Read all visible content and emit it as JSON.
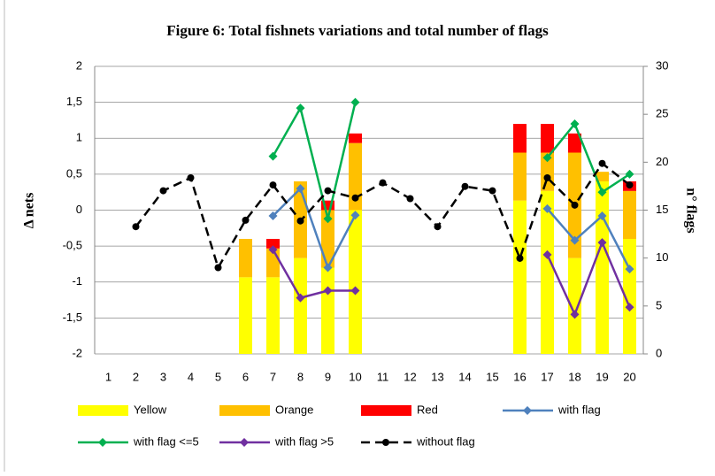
{
  "chart_data": {
    "type": "combo",
    "title": "Figure 6: Total fishnets variations and total number of flags",
    "y_label": "Δ nets",
    "y2_label": "n° flags",
    "categories": [
      "1",
      "2",
      "3",
      "4",
      "5",
      "6",
      "7",
      "8",
      "9",
      "10",
      "11",
      "12",
      "13",
      "14",
      "15",
      "16",
      "17",
      "18",
      "19",
      "20"
    ],
    "ylim": [
      -2,
      2
    ],
    "yticks": [
      -2,
      {
        "value": -1.5,
        "label": "-1,5"
      },
      -1,
      {
        "value": -0.5,
        "label": "-0,5"
      },
      0,
      {
        "value": 0.5,
        "label": "0,5"
      },
      1,
      {
        "value": 1.5,
        "label": "1,5"
      },
      2
    ],
    "y2lim": [
      0,
      30
    ],
    "y2ticks": [
      0,
      5,
      10,
      15,
      20,
      25,
      30
    ],
    "grid": true,
    "legend": "bottom",
    "series": [
      {
        "name": "Yellow",
        "type": "bar",
        "axis": "y2",
        "color": "#ffff00",
        "values": [
          null,
          null,
          null,
          null,
          null,
          8,
          8,
          10,
          9,
          15,
          null,
          null,
          null,
          null,
          null,
          16,
          17,
          10,
          18,
          12
        ]
      },
      {
        "name": "Orange",
        "type": "bar",
        "axis": "y2",
        "color": "#ffc000",
        "values": [
          null,
          null,
          null,
          null,
          null,
          4,
          3,
          8,
          6,
          7,
          null,
          null,
          null,
          null,
          null,
          5,
          4,
          11,
          1,
          5
        ]
      },
      {
        "name": "Red",
        "type": "bar",
        "axis": "y2",
        "color": "#ff0000",
        "values": [
          null,
          null,
          null,
          null,
          null,
          null,
          1,
          null,
          1,
          1,
          null,
          null,
          null,
          null,
          null,
          3,
          3,
          2,
          null,
          1
        ]
      },
      {
        "name": "with flag",
        "type": "line",
        "color": "#4f81bd",
        "marker": "diamond",
        "values": [
          null,
          null,
          null,
          null,
          null,
          null,
          -0.08,
          0.3,
          -0.8,
          -0.07,
          null,
          null,
          null,
          null,
          null,
          null,
          0.02,
          -0.42,
          -0.08,
          -0.82
        ]
      },
      {
        "name": "with flag <=5",
        "type": "line",
        "color": "#00b050",
        "marker": "diamond",
        "values": [
          null,
          null,
          null,
          null,
          null,
          null,
          0.75,
          1.42,
          -0.12,
          1.5,
          null,
          null,
          null,
          null,
          null,
          null,
          0.73,
          1.2,
          0.25,
          0.5
        ]
      },
      {
        "name": "with flag >5",
        "type": "line",
        "color": "#7030a0",
        "marker": "diamond",
        "values": [
          null,
          null,
          null,
          null,
          null,
          null,
          -0.55,
          -1.22,
          -1.12,
          -1.12,
          null,
          null,
          null,
          null,
          null,
          null,
          -0.62,
          -1.45,
          -0.45,
          -1.35
        ]
      },
      {
        "name": "without flag",
        "type": "line",
        "color": "#000000",
        "marker": "circle",
        "dashed": true,
        "values": [
          null,
          -0.23,
          0.27,
          0.45,
          -0.8,
          -0.14,
          0.35,
          -0.15,
          0.27,
          0.17,
          0.38,
          0.16,
          -0.23,
          0.33,
          0.27,
          -0.67,
          0.45,
          0.07,
          0.65,
          0.35
        ]
      }
    ]
  }
}
